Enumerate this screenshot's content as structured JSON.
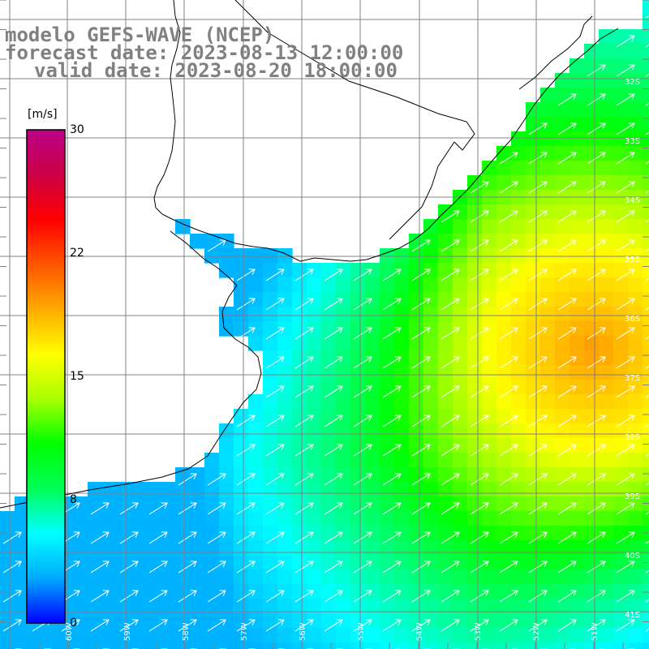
{
  "title": {
    "model": "modelo GEFS-WAVE (NCEP)",
    "forecast": "forecast date: 2023-08-13 12:00:00",
    "valid": "valid date: 2023-08-20 18:00:00"
  },
  "colorbar": {
    "unit": "[m/s]",
    "ticks": [
      "30",
      "22",
      "15",
      "8",
      "0"
    ],
    "tick_values": [
      30,
      22,
      15,
      8,
      0
    ],
    "min": 0,
    "max": 30,
    "colors": [
      "#0000ff",
      "#00aaff",
      "#00ffff",
      "#00ff55",
      "#00ff00",
      "#aaff00",
      "#ffff00",
      "#ffaa00",
      "#ff5500",
      "#ff0000",
      "#cc0044",
      "#bb0088"
    ]
  },
  "map": {
    "lat_labels": [
      "32S",
      "33S",
      "34S",
      "35S",
      "36S",
      "37S",
      "38S",
      "39S",
      "40S",
      "41S"
    ],
    "lon_labels": [
      "60W",
      "59W",
      "58W",
      "57W",
      "56W",
      "55W",
      "54W",
      "53W",
      "52W",
      "51W"
    ],
    "lat_range": [
      -41.3,
      -31.5
    ],
    "lon_range": [
      -61.7,
      -50.5
    ],
    "graticule_step_minor_deg": 0.5,
    "wind_direction": "from southwest (arrows point NE)",
    "land_color": "#ffffff",
    "coastline_color": "#000000",
    "grid_color": "#808080",
    "arrow_color": "#ffffff"
  }
}
